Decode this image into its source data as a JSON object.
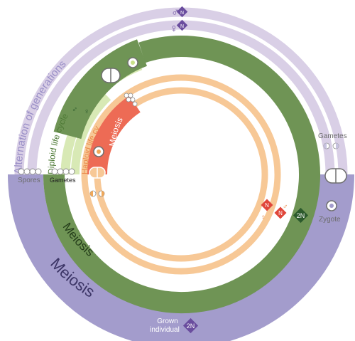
{
  "rings": {
    "alternation": {
      "label": "Alternation of generations",
      "meiosis_label": "Meiosis",
      "spores_label": "Spores",
      "gametes_label": "Gametes",
      "zygote_label": "Zygote",
      "grown_label_line1": "Grown",
      "grown_label_line2": "individual",
      "grown_badge": "2N",
      "outer_badge": "N",
      "inner_badge": "N",
      "outer_symbol": "♂",
      "inner_symbol": "♀",
      "colors": {
        "outer": "#d9cfe6",
        "meiosis": "#a39ccc",
        "badge": "#6a4d9e",
        "text": "#9a8fc7",
        "dark_text": "#3c3566"
      }
    },
    "diploid": {
      "label": "Diploid life cycle",
      "meiosis_label": "Meiosis",
      "gametes_label": "Gametes",
      "badge": "2N",
      "male_symbol": "♂",
      "female_symbol": "♀",
      "colors": {
        "band": "#6f9455",
        "light": "#d8e9b5",
        "text": "#4e7a36",
        "badge": "#2c5a2c",
        "dark_text": "#243d1a"
      }
    },
    "haploid": {
      "label": "Haploid life cycle",
      "meiosis_label": "Meiosis",
      "badge_male": "N",
      "badge_female": "N",
      "male_symbol": "♂",
      "female_symbol": "♀",
      "colors": {
        "ring": "#f7c896",
        "meiosis": "#ed6b55",
        "badge": "#e0463a",
        "text": "#ea8a4a"
      }
    }
  }
}
